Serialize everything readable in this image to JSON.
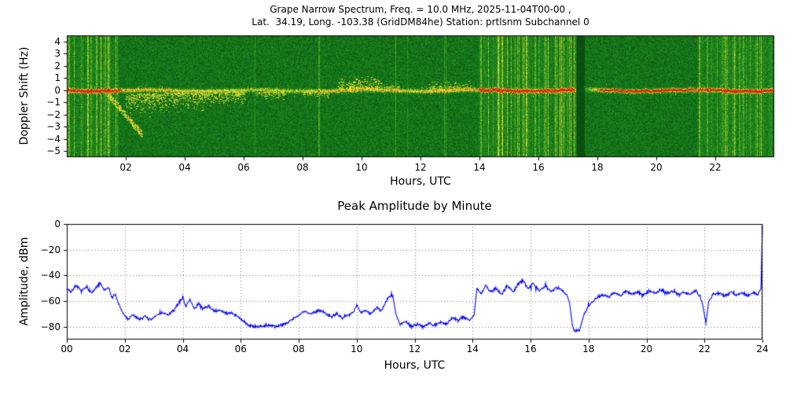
{
  "figure": {
    "background": "#ffffff",
    "text_color": "#000000",
    "frame_color": "#000000"
  },
  "chart_data": [
    {
      "type": "heatmap",
      "title_line1": "Grape Narrow Spectrum, Freq. = 10.0 MHz, 2025-11-04T00-00 ,",
      "title_line2": "Lat.  34.19, Long. -103.38 (GridDM84he) Station: prtlsnm Subchannel 0",
      "xlabel": "Hours, UTC",
      "ylabel": "Doppler Shift (Hz)",
      "xlim": [
        0,
        24
      ],
      "ylim": [
        -5.5,
        4.5
      ],
      "xtick_values": [
        2,
        4,
        6,
        8,
        10,
        12,
        14,
        16,
        18,
        20,
        22
      ],
      "xtick_labels": [
        "02",
        "04",
        "06",
        "08",
        "10",
        "12",
        "14",
        "16",
        "18",
        "20",
        "22"
      ],
      "ytick_values": [
        4,
        3,
        2,
        1,
        0,
        -1,
        -2,
        -3,
        -4,
        -5
      ],
      "ytick_labels": [
        "4",
        "3",
        "2",
        "1",
        "0",
        "−1",
        "−2",
        "−3",
        "−4",
        "−5"
      ],
      "colormap_stops": [
        [
          0,
          "#04330a"
        ],
        [
          0.3,
          "#0c5a14"
        ],
        [
          0.5,
          "#1f8c1f"
        ],
        [
          0.65,
          "#55aa22"
        ],
        [
          0.78,
          "#b4d42c"
        ],
        [
          0.87,
          "#ffe83c"
        ],
        [
          0.94,
          "#ff9628"
        ],
        [
          1,
          "#e6200f"
        ]
      ],
      "carrier_hz": 0.0,
      "carrier_strength": [
        [
          0,
          0.95
        ],
        [
          1.6,
          0.92
        ],
        [
          1.9,
          0.6
        ],
        [
          3,
          0.55
        ],
        [
          5,
          0.5
        ],
        [
          6.5,
          0.42
        ],
        [
          8,
          0.45
        ],
        [
          9.5,
          0.55
        ],
        [
          11,
          0.5
        ],
        [
          13,
          0.55
        ],
        [
          13.95,
          0.6
        ],
        [
          14.1,
          0.88
        ],
        [
          15,
          0.9
        ],
        [
          17.2,
          0.95
        ],
        [
          17.28,
          0.05
        ],
        [
          17.55,
          0.08
        ],
        [
          17.8,
          0.45
        ],
        [
          18.2,
          0.8
        ],
        [
          19,
          0.88
        ],
        [
          21,
          0.88
        ],
        [
          21.9,
          0.75
        ],
        [
          22.1,
          0.88
        ],
        [
          24,
          0.92
        ]
      ],
      "noise_stripe_intervals": [
        [
          0,
          1.75
        ],
        [
          13.95,
          17.28
        ],
        [
          21.4,
          24
        ]
      ],
      "dropout_interval": [
        17.28,
        17.55
      ],
      "doppler_events": [
        {
          "shape": "streak",
          "t": [
            1.35,
            2.55
          ],
          "hz": [
            -0.2,
            -3.6
          ],
          "spread": 0.5,
          "density": 0.55
        },
        {
          "shape": "blob",
          "t": [
            2.0,
            3.3
          ],
          "hz": [
            -0.3,
            -2.2
          ],
          "density": 0.5
        },
        {
          "shape": "blob",
          "t": [
            3.3,
            4.7
          ],
          "hz": [
            -0.2,
            -1.8
          ],
          "density": 0.45
        },
        {
          "shape": "blob",
          "t": [
            4.7,
            6.05
          ],
          "hz": [
            -0.1,
            -1.3
          ],
          "density": 0.4
        },
        {
          "shape": "blob",
          "t": [
            6.4,
            7.4
          ],
          "hz": [
            -0.1,
            -0.8
          ],
          "density": 0.25
        },
        {
          "shape": "blob",
          "t": [
            8.0,
            8.9
          ],
          "hz": [
            -0.1,
            -0.7
          ],
          "density": 0.2
        },
        {
          "shape": "blob",
          "t": [
            9.2,
            10.7
          ],
          "hz": [
            0.1,
            1.2
          ],
          "density": 0.4
        },
        {
          "shape": "blob",
          "t": [
            10.7,
            11.3
          ],
          "hz": [
            0.0,
            0.6
          ],
          "density": 0.25
        },
        {
          "shape": "blob",
          "t": [
            12.3,
            13.7
          ],
          "hz": [
            0.0,
            0.8
          ],
          "density": 0.3
        }
      ]
    },
    {
      "type": "line",
      "title": "Peak Amplitude by Minute",
      "xlabel": "Hours, UTC",
      "ylabel": "Amplitude, dBm",
      "xlim": [
        0,
        24
      ],
      "ylim": [
        -90,
        0
      ],
      "xtick_values": [
        0,
        2,
        4,
        6,
        8,
        10,
        12,
        14,
        16,
        18,
        20,
        22,
        24
      ],
      "xtick_labels": [
        "00",
        "02",
        "04",
        "06",
        "08",
        "10",
        "12",
        "14",
        "16",
        "18",
        "20",
        "22",
        "24"
      ],
      "ytick_values": [
        0,
        -20,
        -40,
        -60,
        -80
      ],
      "ytick_labels": [
        "0",
        "−20",
        "−40",
        "−60",
        "−80"
      ],
      "line_color": "#0000ff",
      "grid": true,
      "grid_style": "dotted",
      "keypoints": [
        [
          0,
          -50
        ],
        [
          0.15,
          -53
        ],
        [
          0.3,
          -48
        ],
        [
          0.5,
          -52
        ],
        [
          0.7,
          -49
        ],
        [
          0.85,
          -54
        ],
        [
          1,
          -50
        ],
        [
          1.15,
          -46
        ],
        [
          1.3,
          -52
        ],
        [
          1.45,
          -49
        ],
        [
          1.55,
          -58
        ],
        [
          1.65,
          -54
        ],
        [
          1.8,
          -63
        ],
        [
          1.95,
          -70
        ],
        [
          2.1,
          -74
        ],
        [
          2.3,
          -71
        ],
        [
          2.5,
          -74
        ],
        [
          2.7,
          -72
        ],
        [
          2.9,
          -75
        ],
        [
          3.1,
          -71
        ],
        [
          3.3,
          -69
        ],
        [
          3.5,
          -71
        ],
        [
          3.7,
          -67
        ],
        [
          3.85,
          -62
        ],
        [
          4,
          -57
        ],
        [
          4.1,
          -64
        ],
        [
          4.25,
          -59
        ],
        [
          4.4,
          -66
        ],
        [
          4.55,
          -62
        ],
        [
          4.7,
          -66
        ],
        [
          4.9,
          -64
        ],
        [
          5.1,
          -68
        ],
        [
          5.3,
          -67
        ],
        [
          5.5,
          -70
        ],
        [
          5.7,
          -69
        ],
        [
          5.9,
          -72
        ],
        [
          6.1,
          -76
        ],
        [
          6.3,
          -79
        ],
        [
          6.6,
          -80
        ],
        [
          6.9,
          -79
        ],
        [
          7.2,
          -80
        ],
        [
          7.5,
          -78
        ],
        [
          7.8,
          -74
        ],
        [
          8,
          -71
        ],
        [
          8.2,
          -68
        ],
        [
          8.45,
          -70
        ],
        [
          8.7,
          -67
        ],
        [
          8.9,
          -69
        ],
        [
          9.1,
          -72
        ],
        [
          9.3,
          -70
        ],
        [
          9.5,
          -73
        ],
        [
          9.7,
          -71
        ],
        [
          9.9,
          -68
        ],
        [
          10,
          -63
        ],
        [
          10.15,
          -69
        ],
        [
          10.3,
          -67
        ],
        [
          10.5,
          -70
        ],
        [
          10.7,
          -65
        ],
        [
          10.85,
          -68
        ],
        [
          11,
          -61
        ],
        [
          11.1,
          -57
        ],
        [
          11.25,
          -56
        ],
        [
          11.35,
          -70
        ],
        [
          11.5,
          -78
        ],
        [
          11.7,
          -76
        ],
        [
          11.9,
          -80
        ],
        [
          12.1,
          -78
        ],
        [
          12.3,
          -80
        ],
        [
          12.5,
          -77
        ],
        [
          12.7,
          -79
        ],
        [
          12.9,
          -76
        ],
        [
          13.1,
          -78
        ],
        [
          13.3,
          -73
        ],
        [
          13.5,
          -75
        ],
        [
          13.7,
          -72
        ],
        [
          13.9,
          -75
        ],
        [
          14.05,
          -71
        ],
        [
          14.15,
          -50
        ],
        [
          14.3,
          -55
        ],
        [
          14.45,
          -47
        ],
        [
          14.6,
          -53
        ],
        [
          14.8,
          -50
        ],
        [
          15,
          -55
        ],
        [
          15.2,
          -48
        ],
        [
          15.4,
          -53
        ],
        [
          15.6,
          -46
        ],
        [
          15.75,
          -44
        ],
        [
          15.9,
          -50
        ],
        [
          16.1,
          -46
        ],
        [
          16.3,
          -52
        ],
        [
          16.5,
          -48
        ],
        [
          16.7,
          -53
        ],
        [
          16.9,
          -49
        ],
        [
          17.1,
          -52
        ],
        [
          17.25,
          -55
        ],
        [
          17.35,
          -62
        ],
        [
          17.45,
          -80
        ],
        [
          17.55,
          -84
        ],
        [
          17.7,
          -82
        ],
        [
          17.85,
          -70
        ],
        [
          18,
          -64
        ],
        [
          18.15,
          -60
        ],
        [
          18.3,
          -57
        ],
        [
          18.5,
          -55
        ],
        [
          18.7,
          -57
        ],
        [
          18.9,
          -53
        ],
        [
          19.1,
          -56
        ],
        [
          19.3,
          -52
        ],
        [
          19.5,
          -55
        ],
        [
          19.7,
          -53
        ],
        [
          19.9,
          -55
        ],
        [
          20.1,
          -52
        ],
        [
          20.3,
          -54
        ],
        [
          20.5,
          -51
        ],
        [
          20.7,
          -54
        ],
        [
          20.9,
          -52
        ],
        [
          21.1,
          -55
        ],
        [
          21.3,
          -53
        ],
        [
          21.5,
          -55
        ],
        [
          21.7,
          -52
        ],
        [
          21.85,
          -56
        ],
        [
          21.95,
          -64
        ],
        [
          22.05,
          -77
        ],
        [
          22.15,
          -60
        ],
        [
          22.3,
          -55
        ],
        [
          22.5,
          -54
        ],
        [
          22.7,
          -56
        ],
        [
          22.9,
          -53
        ],
        [
          23.1,
          -55
        ],
        [
          23.3,
          -54
        ],
        [
          23.5,
          -56
        ],
        [
          23.7,
          -53
        ],
        [
          23.85,
          -55
        ],
        [
          23.95,
          -50
        ],
        [
          24,
          -1
        ]
      ]
    }
  ]
}
